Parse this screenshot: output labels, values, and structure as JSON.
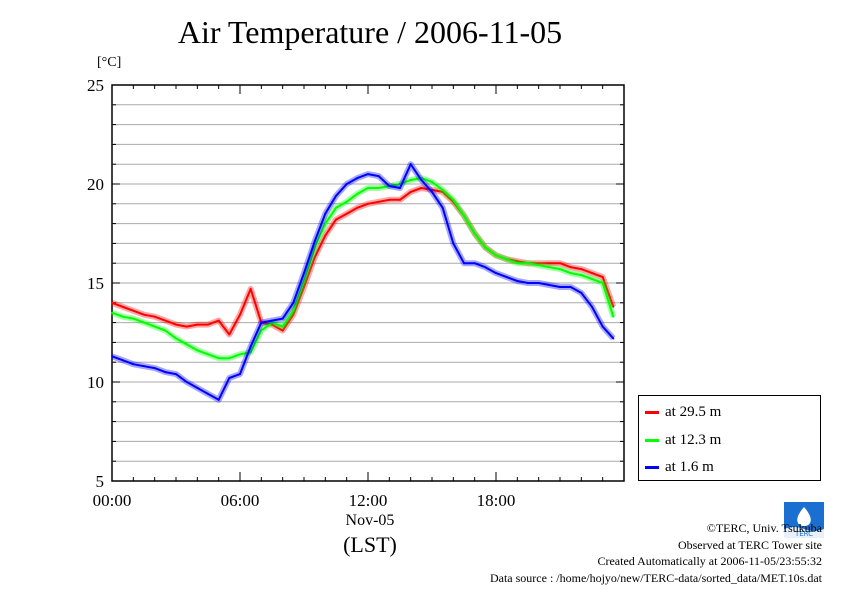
{
  "chart_data": {
    "type": "line",
    "title": "Air Temperature / 2006-11-05",
    "ylabel": "[°C]",
    "ylim": [
      5,
      25
    ],
    "yticks": [
      "5",
      "10",
      "15",
      "20",
      "25"
    ],
    "xlim": [
      0,
      24
    ],
    "xticks": [
      "00:00",
      "06:00",
      "12:00",
      "18:00"
    ],
    "xlabel_date": "Nov-05",
    "xlabel_tz": "(LST)",
    "grid": true,
    "legend_position": "right-bottom",
    "x": [
      0,
      0.5,
      1,
      1.5,
      2,
      2.5,
      3,
      3.5,
      4,
      4.5,
      5,
      5.5,
      6,
      6.5,
      7,
      7.5,
      8,
      8.5,
      9,
      9.5,
      10,
      10.5,
      11,
      11.5,
      12,
      12.5,
      13,
      13.5,
      14,
      14.5,
      15,
      15.5,
      16,
      16.5,
      17,
      17.5,
      18,
      18.5,
      19,
      19.5,
      20,
      20.5,
      21,
      21.5,
      22,
      22.5,
      23,
      23.5
    ],
    "series": [
      {
        "name": "at 29.5 m",
        "color": "#ff0000",
        "values": [
          14.0,
          13.8,
          13.6,
          13.4,
          13.3,
          13.1,
          12.9,
          12.8,
          12.9,
          12.9,
          13.1,
          12.4,
          13.4,
          14.7,
          13.0,
          12.9,
          12.6,
          13.4,
          14.8,
          16.3,
          17.4,
          18.2,
          18.5,
          18.8,
          19.0,
          19.1,
          19.2,
          19.2,
          19.6,
          19.8,
          19.7,
          19.6,
          19.1,
          18.4,
          17.5,
          16.8,
          16.4,
          16.2,
          16.1,
          16.0,
          16.0,
          16.0,
          16.0,
          15.8,
          15.7,
          15.5,
          15.3,
          13.8
        ]
      },
      {
        "name": "at 12.3 m",
        "color": "#00ff00",
        "values": [
          13.5,
          13.3,
          13.2,
          13.0,
          12.8,
          12.6,
          12.2,
          11.9,
          11.6,
          11.4,
          11.2,
          11.2,
          11.4,
          11.5,
          12.6,
          13.0,
          12.8,
          13.6,
          15.1,
          16.8,
          18.0,
          18.8,
          19.1,
          19.5,
          19.8,
          19.8,
          19.9,
          20.0,
          20.2,
          20.3,
          20.1,
          19.7,
          19.2,
          18.4,
          17.5,
          16.8,
          16.4,
          16.2,
          16.0,
          16.0,
          15.9,
          15.8,
          15.7,
          15.5,
          15.4,
          15.2,
          15.0,
          13.3
        ]
      },
      {
        "name": "at 1.6 m",
        "color": "#0000ff",
        "values": [
          11.3,
          11.1,
          10.9,
          10.8,
          10.7,
          10.5,
          10.4,
          10.0,
          9.7,
          9.4,
          9.1,
          10.2,
          10.4,
          11.8,
          13.0,
          13.1,
          13.2,
          14.0,
          15.5,
          17.1,
          18.5,
          19.4,
          20.0,
          20.3,
          20.5,
          20.4,
          19.9,
          19.8,
          21.0,
          20.2,
          19.6,
          18.8,
          17.0,
          16.0,
          16.0,
          15.8,
          15.5,
          15.3,
          15.1,
          15.0,
          15.0,
          14.9,
          14.8,
          14.8,
          14.5,
          13.8,
          12.8,
          12.2
        ]
      }
    ]
  },
  "credits": {
    "copyright": "©TERC, Univ. Tsukuba",
    "site": "Observed at TERC Tower site",
    "created": "Created Automatically at 2006-11-05/23:55:32",
    "source": "Data source : /home/hojyo/new/TERC-data/sorted_data/MET.10s.dat"
  },
  "logo": {
    "label": "TERC",
    "color": "#1a6fd0"
  }
}
